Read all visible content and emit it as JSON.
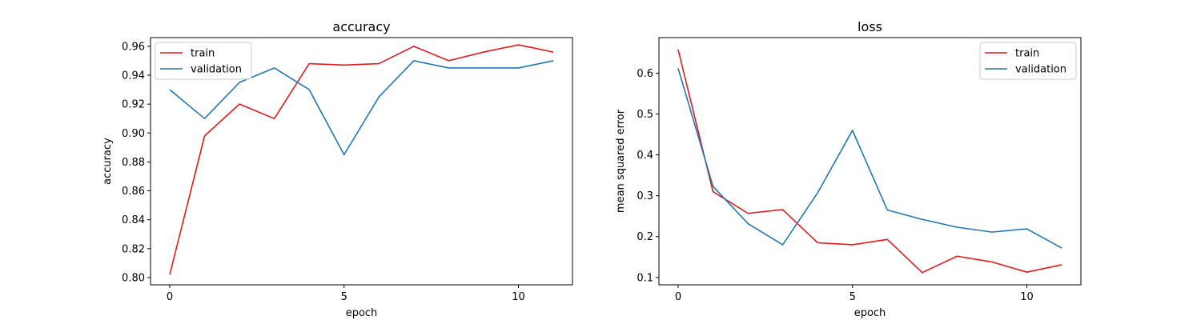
{
  "chart_data": [
    {
      "type": "line",
      "title": "accuracy",
      "xlabel": "epoch",
      "ylabel": "accuracy",
      "xlim": [
        -0.55,
        11.55
      ],
      "ylim": [
        0.795,
        0.966
      ],
      "xticks": [
        0,
        5,
        10
      ],
      "yticks": [
        0.8,
        0.82,
        0.84,
        0.86,
        0.88,
        0.9,
        0.92,
        0.94,
        0.96
      ],
      "ytick_labels": [
        "0.80",
        "0.82",
        "0.84",
        "0.86",
        "0.88",
        "0.90",
        "0.92",
        "0.94",
        "0.96"
      ],
      "legend": "upper left",
      "grid": false,
      "x": [
        0,
        1,
        2,
        3,
        4,
        5,
        6,
        7,
        8,
        9,
        10,
        11
      ],
      "series": [
        {
          "name": "train",
          "color": "#e41a1c",
          "values": [
            0.802,
            0.898,
            0.92,
            0.91,
            0.948,
            0.947,
            0.948,
            0.96,
            0.95,
            0.956,
            0.961,
            0.956
          ]
        },
        {
          "name": "validation",
          "color": "#1f77b4",
          "values": [
            0.93,
            0.91,
            0.935,
            0.945,
            0.93,
            0.885,
            0.925,
            0.95,
            0.945,
            0.945,
            0.945,
            0.95
          ]
        }
      ]
    },
    {
      "type": "line",
      "title": "loss",
      "xlabel": "epoch",
      "ylabel": "mean squared error",
      "xlim": [
        -0.55,
        11.55
      ],
      "ylim": [
        0.082,
        0.687
      ],
      "xticks": [
        0,
        5,
        10
      ],
      "yticks": [
        0.1,
        0.2,
        0.3,
        0.4,
        0.5,
        0.6
      ],
      "ytick_labels": [
        "0.1",
        "0.2",
        "0.3",
        "0.4",
        "0.5",
        "0.6"
      ],
      "legend": "upper right",
      "grid": false,
      "x": [
        0,
        1,
        2,
        3,
        4,
        5,
        6,
        7,
        8,
        9,
        10,
        11
      ],
      "series": [
        {
          "name": "train",
          "color": "#e41a1c",
          "values": [
            0.658,
            0.31,
            0.257,
            0.266,
            0.185,
            0.18,
            0.193,
            0.112,
            0.152,
            0.138,
            0.113,
            0.131
          ]
        },
        {
          "name": "validation",
          "color": "#1f77b4",
          "values": [
            0.612,
            0.323,
            0.232,
            0.18,
            0.307,
            0.46,
            0.265,
            0.242,
            0.223,
            0.211,
            0.219,
            0.172
          ]
        }
      ]
    }
  ]
}
